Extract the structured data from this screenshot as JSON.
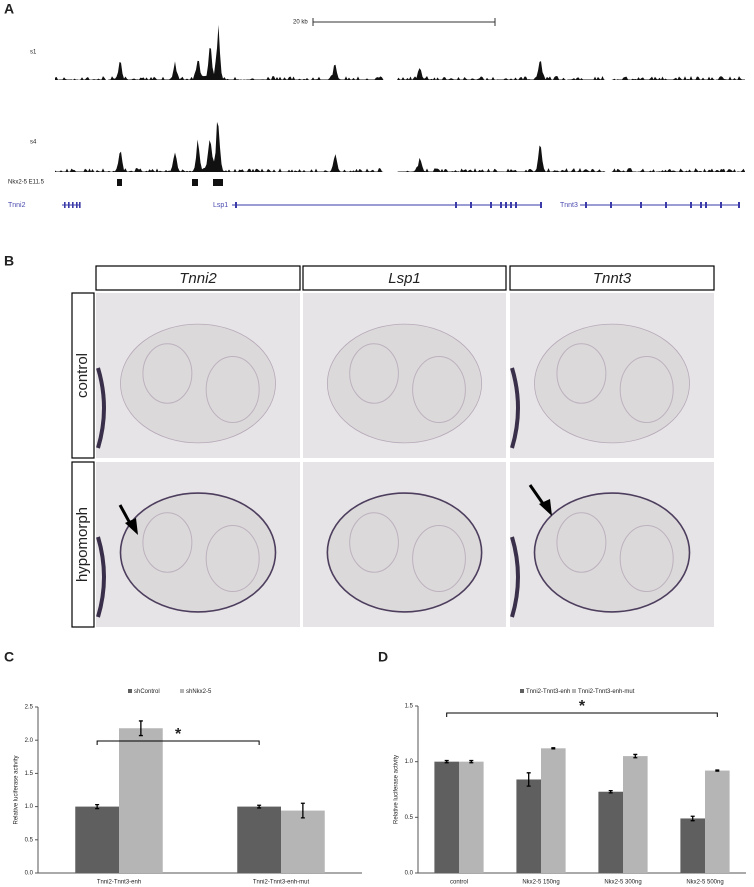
{
  "panel_a": {
    "label": "A",
    "scale_bar": "20 kb",
    "tracks": [
      "s1",
      "s4"
    ],
    "peaks_track": "Nkx2-5 E11.5",
    "genes": [
      "Tnni2",
      "Lsp1",
      "Tnnt3"
    ]
  },
  "panel_b": {
    "label": "B",
    "columns": [
      "Tnni2",
      "Lsp1",
      "Tnnt3"
    ],
    "rows": [
      "control",
      "hypomorph"
    ]
  },
  "chart_data": [
    {
      "type": "bar",
      "panel": "C",
      "y_label": "Relative luciferase activity",
      "annotation": "*",
      "categories": [
        "Tnni2-Tnnt3-enh",
        "Tnni2-Tnnt3-enh-mut"
      ],
      "series": [
        {
          "name": "shControl",
          "color": "#5f5f5f",
          "values": [
            1.0,
            1.0
          ],
          "errors": [
            0.03,
            0.02
          ]
        },
        {
          "name": "shNkx2-5",
          "color": "#b5b5b5",
          "values": [
            2.18,
            0.94
          ],
          "errors": [
            0.11,
            0.11
          ]
        }
      ],
      "ylim": [
        0,
        2.5
      ],
      "yticks": [
        {
          "value": 0,
          "label": "0.0"
        },
        0.5,
        {
          "value": 1,
          "label": "1.0"
        },
        1.5,
        {
          "value": 2,
          "label": "2.0"
        },
        2.5
      ]
    },
    {
      "type": "bar",
      "panel": "D",
      "y_label": "Relative luciferase activity",
      "annotation": "*",
      "categories": [
        "control",
        "Nkx2-5 150ng",
        "Nkx2-5 300ng",
        "Nkx2-5 500ng"
      ],
      "series": [
        {
          "name": "Tnni2-Tnnt3-enh",
          "color": "#5f5f5f",
          "values": [
            1.0,
            0.84,
            0.73,
            0.49
          ],
          "errors": [
            0.01,
            0.06,
            0.01,
            0.02
          ]
        },
        {
          "name": "Tnni2-Tnnt3-enh-mut",
          "color": "#b5b5b5",
          "values": [
            1.0,
            1.12,
            1.05,
            0.92
          ],
          "errors": [
            0.01,
            0.005,
            0.015,
            0.005
          ]
        }
      ],
      "ylim": [
        0,
        1.5
      ],
      "yticks": [
        {
          "value": 0,
          "label": "0.0"
        },
        0.5,
        {
          "value": 1,
          "label": "1.0"
        },
        1.5
      ]
    }
  ]
}
